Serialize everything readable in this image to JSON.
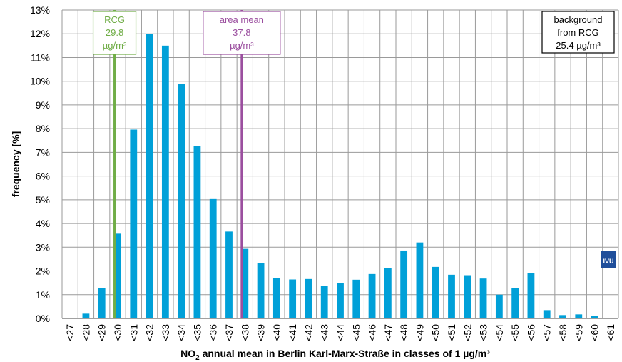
{
  "chart_data": {
    "type": "bar",
    "xlabel_main": "NO",
    "xlabel_sub": "2",
    "xlabel_rest": " annual mean in Berlin Karl-Marx-Straße  in classes of 1 µg/m³",
    "ylabel": "frequency [%]",
    "ylim": [
      0,
      13
    ],
    "y_ticks": [
      "0%",
      "1%",
      "2%",
      "3%",
      "4%",
      "5%",
      "6%",
      "7%",
      "8%",
      "9%",
      "10%",
      "11%",
      "12%",
      "13%"
    ],
    "categories": [
      "<27",
      "<28",
      "<29",
      "<30",
      "<31",
      "<32",
      "<33",
      "<34",
      "<35",
      "<36",
      "<37",
      "<38",
      "<39",
      "<40",
      "<41",
      "<42",
      "<43",
      "<44",
      "<45",
      "<46",
      "<47",
      "<48",
      "<49",
      "<50",
      "<51",
      "<52",
      "<53",
      "<54",
      "<55",
      "<56",
      "<57",
      "<58",
      "<59",
      "<60",
      "<61"
    ],
    "values": [
      0,
      0.2,
      1.28,
      3.57,
      7.96,
      12.0,
      11.5,
      9.87,
      7.27,
      5.03,
      3.66,
      2.93,
      2.33,
      1.71,
      1.64,
      1.66,
      1.37,
      1.48,
      1.63,
      1.87,
      2.13,
      2.86,
      3.2,
      2.17,
      1.84,
      1.82,
      1.68,
      1.0,
      1.28,
      1.9,
      0.35,
      0.14,
      0.17,
      0.09,
      0
    ],
    "bar_color": "#00a0d8",
    "grid": true,
    "reference_lines": [
      {
        "x": 29.8,
        "color": "#70ad47",
        "lines": [
          "RCG",
          "29.8",
          "µg/m³"
        ]
      },
      {
        "x": 37.8,
        "color": "#9b4f9f",
        "lines": [
          "area mean",
          "37.8",
          "µg/m³"
        ]
      }
    ],
    "info_box": {
      "position": "top-right",
      "color": "#000000",
      "lines": [
        "background",
        "from RCG",
        "25.4 µg/m³"
      ]
    },
    "logo_text": "IVU"
  }
}
